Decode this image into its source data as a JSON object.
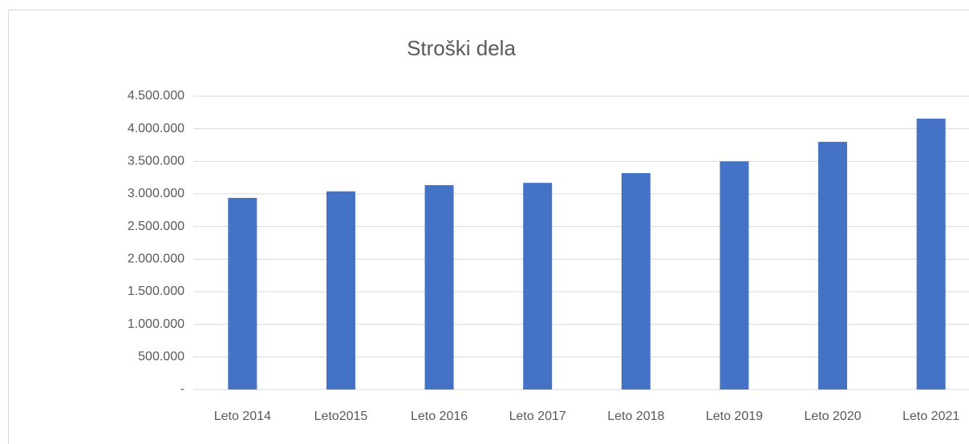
{
  "chart_data": {
    "type": "bar",
    "title": "Stroški dela",
    "categories": [
      "Leto 2014",
      "Leto2015",
      "Leto 2016",
      "Leto 2017",
      "Leto 2018",
      "Leto 2019",
      "Leto 2020",
      "Leto 2021"
    ],
    "values": [
      2940000,
      3040000,
      3135000,
      3170000,
      3320000,
      3500000,
      3800000,
      4155000
    ],
    "color": "#4472c4",
    "ylim": [
      0,
      4500000
    ],
    "yticks": [
      {
        "value": 0,
        "label": "-"
      },
      {
        "value": 500000,
        "label": "500.000"
      },
      {
        "value": 1000000,
        "label": "1.000.000"
      },
      {
        "value": 1500000,
        "label": "1.500.000"
      },
      {
        "value": 2000000,
        "label": "2.000.000"
      },
      {
        "value": 2500000,
        "label": "2.500.000"
      },
      {
        "value": 3000000,
        "label": "3.000.000"
      },
      {
        "value": 3500000,
        "label": "3.500.000"
      },
      {
        "value": 4000000,
        "label": "4.000.000"
      },
      {
        "value": 4500000,
        "label": "4.500.000"
      }
    ],
    "grid": true
  }
}
